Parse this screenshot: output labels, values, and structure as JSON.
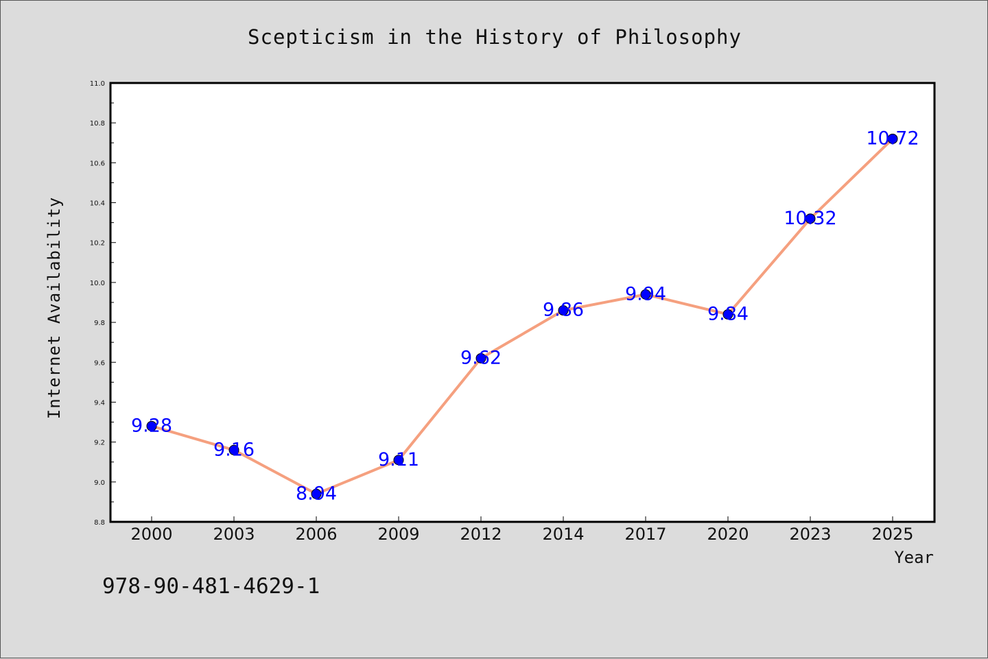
{
  "chart_data": {
    "type": "line",
    "title": "Scepticism in the History of Philosophy",
    "xlabel": "Year",
    "ylabel": "Internet Availability",
    "categories": [
      "2000",
      "2003",
      "2006",
      "2009",
      "2012",
      "2014",
      "2017",
      "2020",
      "2023",
      "2025"
    ],
    "series": [
      {
        "values": [
          9.28,
          9.16,
          8.94,
          9.11,
          9.62,
          9.86,
          9.94,
          9.84,
          10.32,
          10.72
        ],
        "data_labels": [
          "9.28",
          "9.16",
          "8.94",
          "9.11",
          "9.62",
          "9.86",
          "9.94",
          "9.84",
          "10.32",
          "10.72"
        ]
      }
    ],
    "ylim": [
      8.8,
      11.0
    ],
    "yticks": [
      "8.8",
      "9.0",
      "9.2",
      "9.4",
      "9.6",
      "9.8",
      "10.0",
      "10.2",
      "10.4",
      "10.6",
      "10.8",
      "11.0"
    ],
    "grid": false,
    "legend": "none",
    "colors": {
      "line": "#f5a07f",
      "marker": "#0000ff",
      "data_label": "#0000ff",
      "background": "#dcdcdc",
      "plot_area": "#ffffff"
    }
  },
  "footer": {
    "isbn": "978-90-481-4629-1"
  }
}
